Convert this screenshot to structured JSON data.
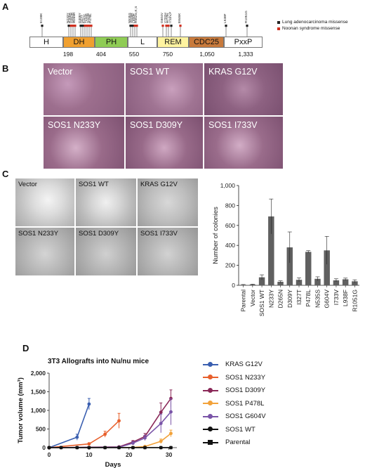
{
  "panels": {
    "a": "A",
    "b": "B",
    "c": "C",
    "d": "D"
  },
  "panel_a": {
    "domains": [
      {
        "label": "H",
        "color": "#ffffff"
      },
      {
        "label": "DH",
        "color": "#f0a030"
      },
      {
        "label": "PH",
        "color": "#8fcc55"
      },
      {
        "label": "L",
        "color": "#ffffff"
      },
      {
        "label": "REM",
        "color": "#fff4a0"
      },
      {
        "label": "CDC25",
        "color": "#c87a3c"
      },
      {
        "label": "PxxP",
        "color": "#ffffff"
      }
    ],
    "positions": [
      "198",
      "404",
      "550",
      "750",
      "1,050",
      "1,333"
    ],
    "mutations": [
      "E108K",
      "N233Y",
      "R269R",
      "Q262R",
      "M269R",
      "D309Y",
      "I327T",
      "K421I",
      "T434K",
      "S443E",
      "P478L",
      "N535S",
      "S548R",
      "L550P",
      "R552G,K,S",
      "G604V",
      "Y702H",
      "W729L",
      "I733V,F",
      "E846K",
      "L938F",
      "R1051G"
    ],
    "legend": [
      {
        "label": "Lung adenocarcinoma missense",
        "color": "#222222"
      },
      {
        "label": "Noonan syndrome missense",
        "color": "#d03020"
      }
    ]
  },
  "panel_b": {
    "labels": [
      "Vector",
      "SOS1 WT",
      "KRAS G12V",
      "SOS1 N233Y",
      "SOS1 D309Y",
      "SOS1 I733V"
    ]
  },
  "panel_c": {
    "well_labels": [
      "Vector",
      "SOS1 WT",
      "KRAS G12V",
      "SOS1 N233Y",
      "SOS1 D309Y",
      "SOS1 I733V"
    ],
    "y_tick_labels": [
      "0",
      "200",
      "400",
      "600",
      "800",
      "1,000"
    ]
  },
  "panel_d": {
    "title": "3T3 Allografts into Nu/nu mice",
    "y_tick_labels": [
      "0",
      "500",
      "1,000",
      "1,500",
      "2,000"
    ],
    "x_tick_labels": [
      "0",
      "10",
      "20",
      "30"
    ],
    "legend": [
      {
        "label": "KRAS G12V",
        "color": "#3a5fb0",
        "marker": "circle"
      },
      {
        "label": "SOS1 N233Y",
        "color": "#e8602c",
        "marker": "circle"
      },
      {
        "label": "SOS1 D309Y",
        "color": "#8a2858",
        "marker": "circle"
      },
      {
        "label": "SOS1 P478L",
        "color": "#f2a23a",
        "marker": "circle"
      },
      {
        "label": "SOS1 G604V",
        "color": "#7a55a8",
        "marker": "circle"
      },
      {
        "label": "SOS1 WT",
        "color": "#111111",
        "marker": "circle"
      },
      {
        "label": "Parental",
        "color": "#111111",
        "marker": "square"
      }
    ]
  },
  "chart_data": [
    {
      "type": "bar",
      "title": "",
      "xlabel": "",
      "ylabel": "Number of colonies",
      "ylim": [
        0,
        1000
      ],
      "categories": [
        "Parental",
        "Vector",
        "SOS1 WT",
        "N233Y",
        "D265N",
        "D309Y",
        "I327T",
        "P478L",
        "N535S",
        "G604V",
        "I733V",
        "L938F",
        "R1051G"
      ],
      "values": [
        5,
        8,
        80,
        690,
        35,
        380,
        55,
        335,
        65,
        350,
        50,
        60,
        40
      ],
      "errors": [
        3,
        4,
        25,
        175,
        10,
        155,
        20,
        12,
        20,
        140,
        15,
        12,
        15
      ],
      "grid": false
    },
    {
      "type": "line",
      "title": "3T3 Allografts into Nu/nu mice",
      "xlabel": "Days",
      "ylabel": "Tumor volume (mm³)",
      "xlim": [
        0,
        32
      ],
      "ylim": [
        0,
        2000
      ],
      "grid": false,
      "legend_position": "right",
      "series": [
        {
          "name": "KRAS G12V",
          "x": [
            0,
            7,
            10
          ],
          "y": [
            0,
            280,
            1170
          ],
          "err": [
            0,
            80,
            150
          ]
        },
        {
          "name": "SOS1 N233Y",
          "x": [
            0,
            10,
            14,
            17.5
          ],
          "y": [
            0,
            100,
            360,
            720
          ],
          "err": [
            0,
            30,
            80,
            200
          ]
        },
        {
          "name": "SOS1 D309Y",
          "x": [
            0,
            17.5,
            21,
            24,
            28,
            30.5
          ],
          "y": [
            0,
            20,
            150,
            300,
            950,
            1320
          ],
          "err": [
            0,
            10,
            40,
            80,
            250,
            230
          ]
        },
        {
          "name": "SOS1 P478L",
          "x": [
            0,
            21,
            24,
            28,
            30.5
          ],
          "y": [
            0,
            5,
            30,
            170,
            380
          ],
          "err": [
            0,
            5,
            15,
            60,
            90
          ]
        },
        {
          "name": "SOS1 G604V",
          "x": [
            0,
            17.5,
            21,
            24,
            28,
            30.5
          ],
          "y": [
            0,
            10,
            120,
            260,
            650,
            960
          ],
          "err": [
            0,
            10,
            40,
            70,
            250,
            350
          ]
        },
        {
          "name": "SOS1 WT",
          "x": [
            0,
            3,
            7,
            10,
            14,
            17.5,
            21,
            24,
            28,
            30.5
          ],
          "y": [
            0,
            0,
            0,
            0,
            0,
            0,
            0,
            0,
            0,
            0
          ]
        },
        {
          "name": "Parental",
          "x": [
            0,
            3,
            7,
            10,
            14,
            17.5,
            21,
            24,
            28,
            30.5
          ],
          "y": [
            0,
            0,
            0,
            0,
            0,
            0,
            0,
            0,
            0,
            0
          ]
        }
      ]
    }
  ]
}
